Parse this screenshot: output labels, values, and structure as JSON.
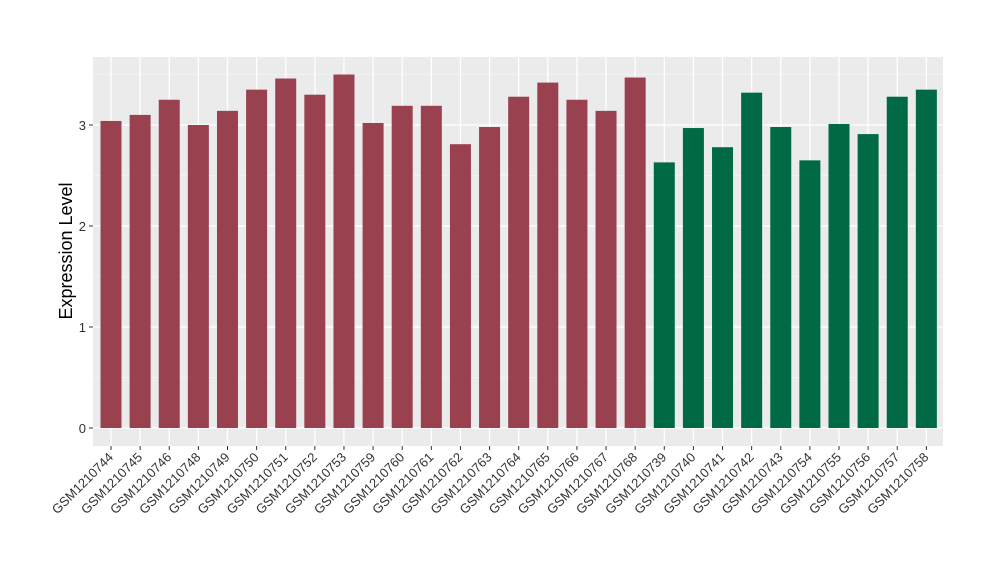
{
  "chart_data": {
    "type": "bar",
    "ylabel": "Expression Level",
    "xlabel": "",
    "ylim": [
      0,
      3.58
    ],
    "yticks": [
      0,
      1,
      2,
      3
    ],
    "grid": true,
    "legend": "none",
    "group_colors": [
      "#9a4150",
      "#006a45"
    ],
    "categories": [
      "GSM1210744",
      "GSM1210745",
      "GSM1210746",
      "GSM1210748",
      "GSM1210749",
      "GSM1210750",
      "GSM1210751",
      "GSM1210752",
      "GSM1210753",
      "GSM1210759",
      "GSM1210760",
      "GSM1210761",
      "GSM1210762",
      "GSM1210763",
      "GSM1210764",
      "GSM1210765",
      "GSM1210766",
      "GSM1210767",
      "GSM1210768",
      "GSM1210739",
      "GSM1210740",
      "GSM1210741",
      "GSM1210742",
      "GSM1210743",
      "GSM1210754",
      "GSM1210755",
      "GSM1210756",
      "GSM1210757",
      "GSM1210758"
    ],
    "values": [
      3.04,
      3.1,
      3.25,
      3.0,
      3.14,
      3.35,
      3.46,
      3.3,
      3.5,
      3.02,
      3.19,
      3.19,
      2.81,
      2.98,
      3.28,
      3.42,
      3.25,
      3.14,
      3.47,
      2.63,
      2.97,
      2.78,
      3.32,
      2.98,
      2.65,
      3.01,
      2.91,
      3.28,
      3.35
    ],
    "groups": [
      0,
      0,
      0,
      0,
      0,
      0,
      0,
      0,
      0,
      0,
      0,
      0,
      0,
      0,
      0,
      0,
      0,
      0,
      0,
      1,
      1,
      1,
      1,
      1,
      1,
      1,
      1,
      1,
      1
    ]
  }
}
